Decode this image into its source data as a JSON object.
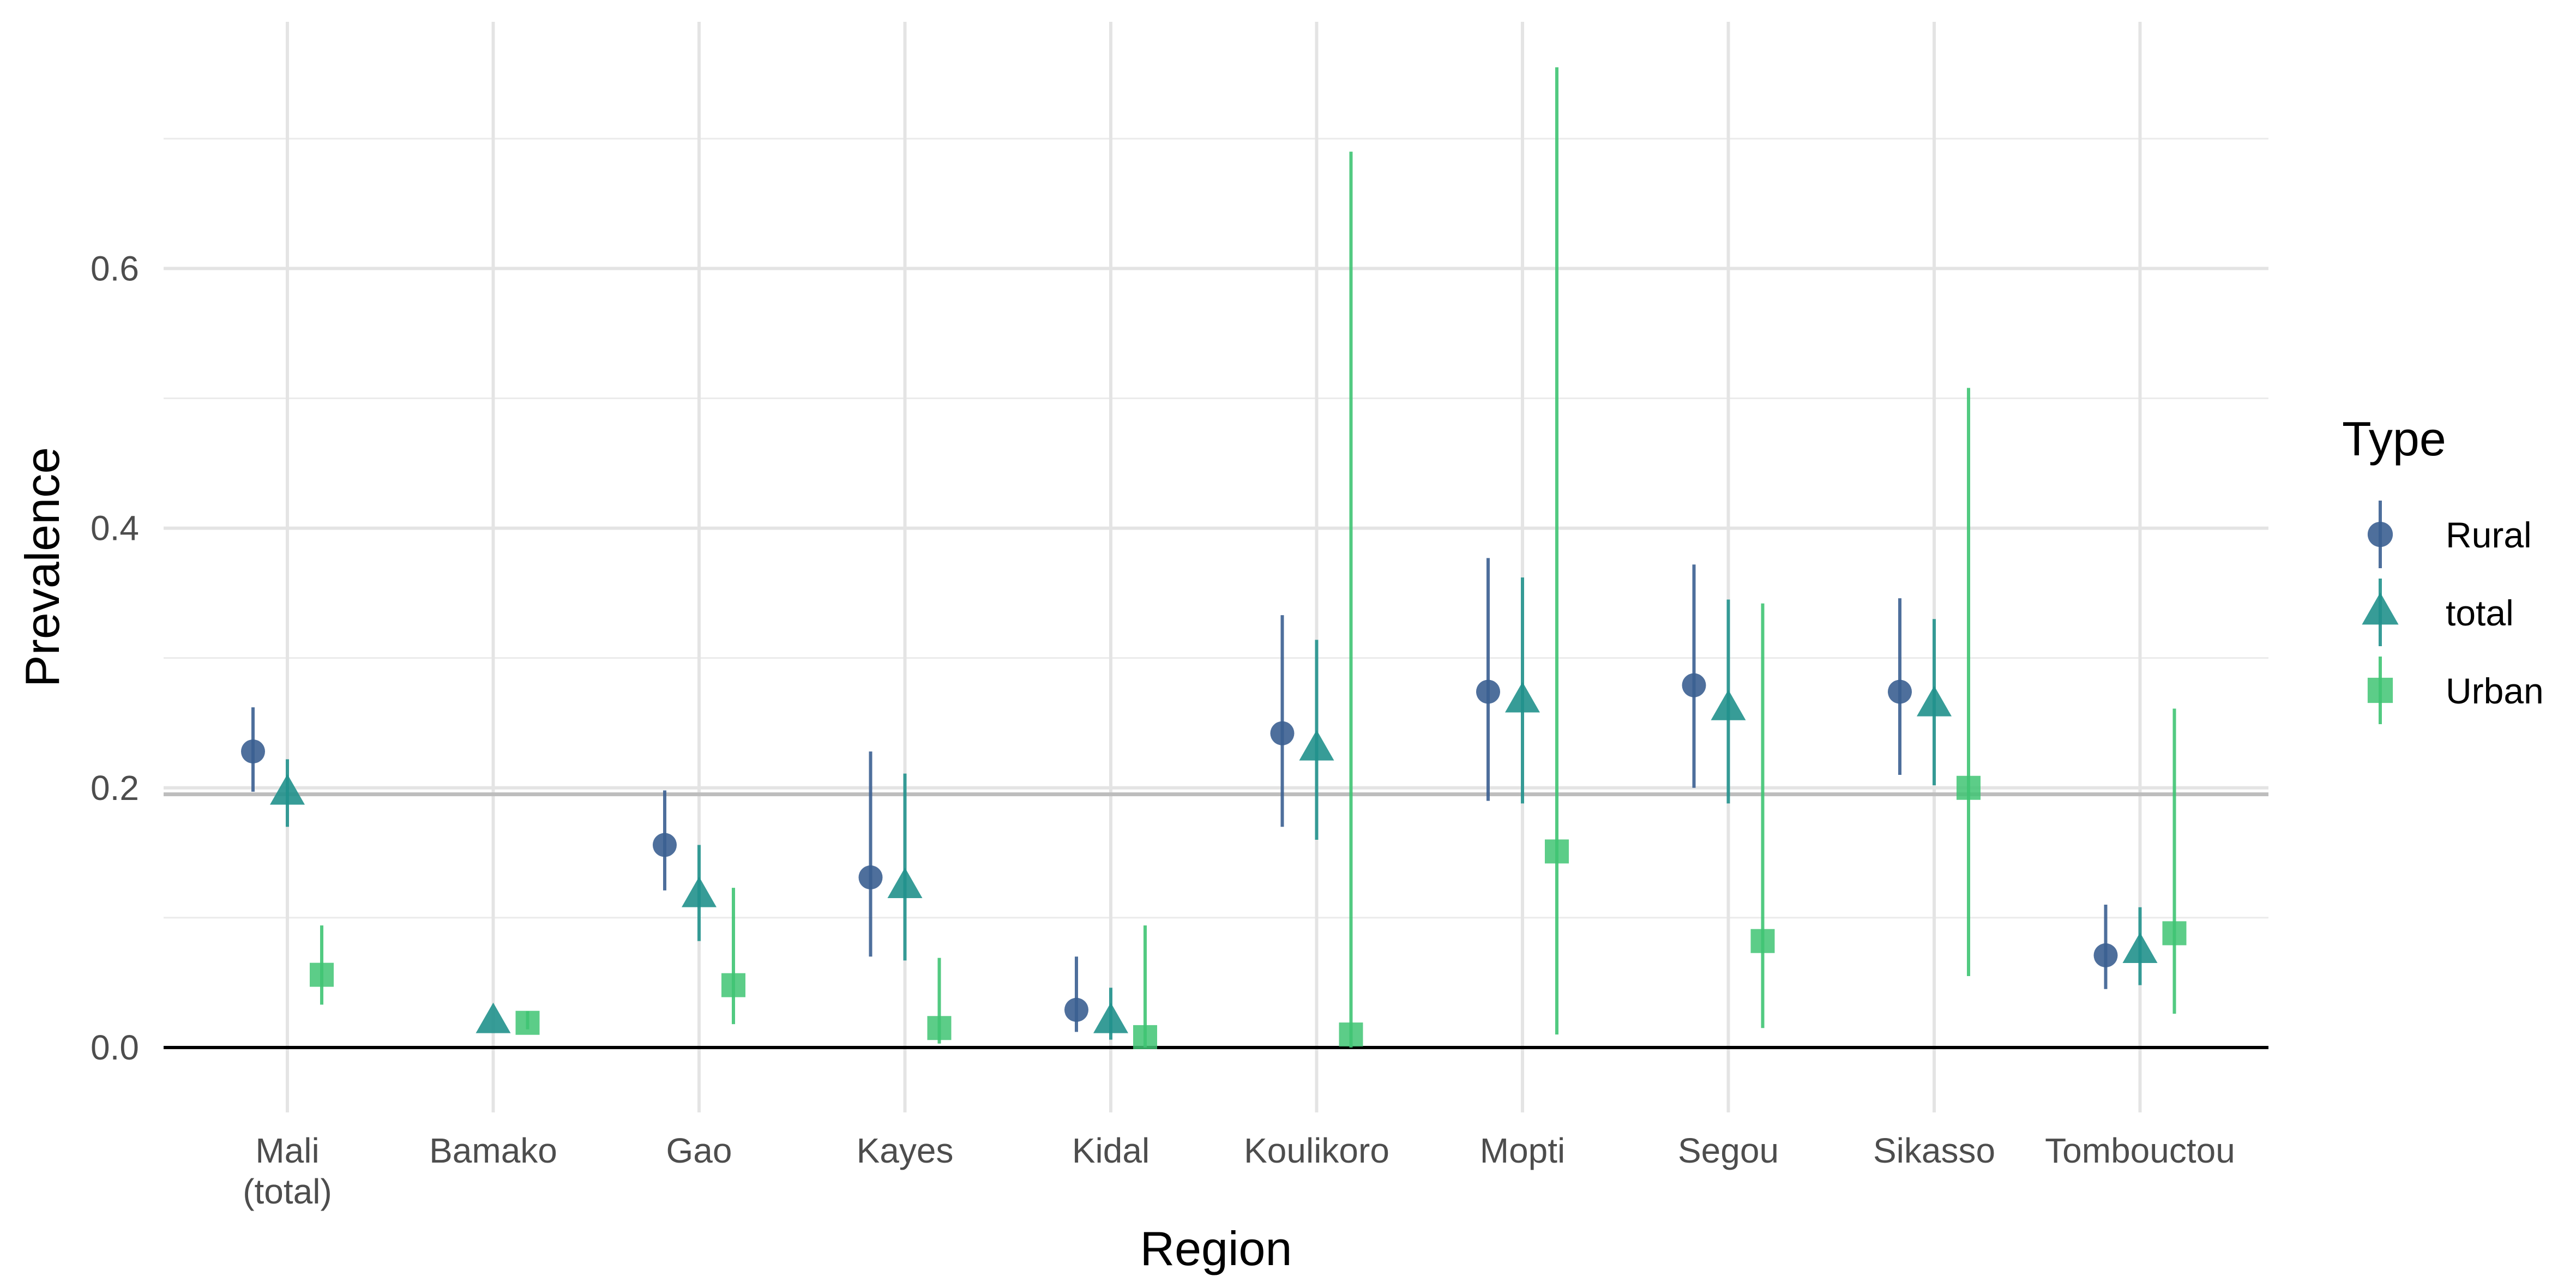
{
  "chart_data": {
    "type": "scatter",
    "xlabel": "Region",
    "ylabel": "Prevalence",
    "ylim": [
      -0.05,
      0.79
    ],
    "yticks": [
      0.0,
      0.2,
      0.4,
      0.6
    ],
    "ytick_labels": [
      "0.0",
      "0.2",
      "0.4",
      "0.6"
    ],
    "grid": true,
    "reference_line": 0.195,
    "categories": [
      {
        "lines": [
          "Mali",
          "(total)"
        ]
      },
      {
        "lines": [
          "Bamako"
        ]
      },
      {
        "lines": [
          "Gao"
        ]
      },
      {
        "lines": [
          "Kayes"
        ]
      },
      {
        "lines": [
          "Kidal"
        ]
      },
      {
        "lines": [
          "Koulikoro"
        ]
      },
      {
        "lines": [
          "Mopti"
        ]
      },
      {
        "lines": [
          "Segou"
        ]
      },
      {
        "lines": [
          "Sikasso"
        ]
      },
      {
        "lines": [
          "Tombouctou"
        ]
      }
    ],
    "legend": {
      "title": "Type",
      "position": "right"
    },
    "series": [
      {
        "name": "Rural",
        "color": "#3b5f91",
        "shape": "circle",
        "values": [
          0.228,
          null,
          0.156,
          0.131,
          0.029,
          0.242,
          0.274,
          0.279,
          0.274,
          0.071
        ],
        "lower": [
          0.197,
          null,
          0.121,
          0.07,
          0.012,
          0.17,
          0.19,
          0.2,
          0.21,
          0.045
        ],
        "upper": [
          0.262,
          null,
          0.198,
          0.228,
          0.07,
          0.333,
          0.377,
          0.372,
          0.346,
          0.11
        ]
      },
      {
        "name": "total",
        "color": "#21918c",
        "shape": "triangle",
        "values": [
          0.196,
          0.02,
          0.117,
          0.124,
          0.02,
          0.23,
          0.267,
          0.261,
          0.264,
          0.074
        ],
        "lower": [
          0.17,
          null,
          0.082,
          0.067,
          0.006,
          0.16,
          0.188,
          0.188,
          0.202,
          0.048
        ],
        "upper": [
          0.222,
          null,
          0.156,
          0.211,
          0.046,
          0.314,
          0.362,
          0.345,
          0.33,
          0.108
        ]
      },
      {
        "name": "Urban",
        "color": "#3fc473",
        "shape": "square",
        "values": [
          0.056,
          0.019,
          0.048,
          0.015,
          0.008,
          0.01,
          0.151,
          0.082,
          0.2,
          0.088
        ],
        "lower": [
          0.033,
          0.014,
          0.018,
          0.003,
          0.0,
          0.0,
          0.01,
          0.015,
          0.055,
          0.026
        ],
        "upper": [
          0.094,
          0.028,
          0.123,
          0.069,
          0.094,
          0.69,
          0.755,
          0.342,
          0.508,
          0.261
        ]
      }
    ]
  }
}
